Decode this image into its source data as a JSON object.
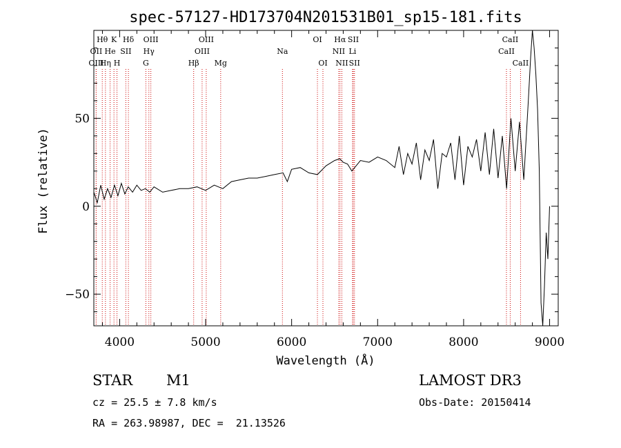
{
  "chart_data": {
    "type": "line",
    "title": "spec-57127-HD173704N201531B01_sp15-181.fits",
    "xlabel": "Wavelength (Å)",
    "ylabel": "Flux (relative)",
    "xlim": [
      3700,
      9100
    ],
    "ylim": [
      -68,
      100
    ],
    "x_ticks": [
      4000,
      5000,
      6000,
      7000,
      8000,
      9000
    ],
    "x_tick_labels": [
      "4000",
      "5000",
      "6000",
      "7000",
      "8000",
      "9000"
    ],
    "y_ticks": [
      50,
      0,
      -50
    ],
    "y_tick_labels": [
      "50",
      "0",
      "−50"
    ],
    "series": [
      {
        "name": "flux",
        "x": [
          3700,
          3740,
          3780,
          3820,
          3860,
          3900,
          3940,
          3980,
          4020,
          4060,
          4100,
          4150,
          4200,
          4250,
          4300,
          4350,
          4400,
          4500,
          4600,
          4700,
          4800,
          4900,
          5000,
          5100,
          5200,
          5300,
          5400,
          5500,
          5600,
          5700,
          5800,
          5900,
          5950,
          6000,
          6100,
          6200,
          6300,
          6400,
          6500,
          6560,
          6600,
          6650,
          6700,
          6800,
          6900,
          7000,
          7100,
          7200,
          7250,
          7300,
          7350,
          7400,
          7450,
          7500,
          7550,
          7600,
          7650,
          7700,
          7750,
          7800,
          7850,
          7900,
          7950,
          8000,
          8050,
          8100,
          8150,
          8200,
          8250,
          8300,
          8350,
          8400,
          8450,
          8500,
          8550,
          8600,
          8650,
          8700,
          8750,
          8780,
          8800,
          8820,
          8840,
          8860,
          8880,
          8900,
          8920,
          8940,
          8960,
          8980,
          9000
        ],
        "values": [
          8,
          2,
          12,
          4,
          10,
          5,
          12,
          6,
          13,
          7,
          11,
          8,
          12,
          9,
          10,
          8,
          11,
          8,
          9,
          10,
          10,
          11,
          9,
          12,
          10,
          14,
          15,
          16,
          16,
          17,
          18,
          19,
          14,
          21,
          22,
          19,
          18,
          23,
          26,
          27,
          25,
          24,
          20,
          26,
          25,
          28,
          26,
          22,
          34,
          18,
          30,
          24,
          36,
          15,
          32,
          26,
          38,
          10,
          30,
          28,
          36,
          15,
          40,
          12,
          34,
          28,
          38,
          20,
          42,
          18,
          44,
          16,
          40,
          10,
          50,
          20,
          48,
          15,
          58,
          85,
          105,
          90,
          75,
          55,
          20,
          -55,
          -68,
          -45,
          -15,
          -30,
          0
        ]
      }
    ],
    "spectral_lines": [
      {
        "label": "Hθ",
        "wavelength": 3798,
        "row": 1
      },
      {
        "label": "OII",
        "wavelength": 3727,
        "row": 2
      },
      {
        "label": "OIII",
        "wavelength": 3727,
        "row": 3
      },
      {
        "label": "He",
        "wavelength": 3889,
        "row": 2
      },
      {
        "label": "Hη",
        "wavelength": 3835,
        "row": 3
      },
      {
        "label": "K",
        "wavelength": 3934,
        "row": 1
      },
      {
        "label": "SII",
        "wavelength": 4072,
        "row": 2
      },
      {
        "label": "H",
        "wavelength": 3969,
        "row": 3
      },
      {
        "label": "Hδ",
        "wavelength": 4102,
        "row": 1
      },
      {
        "label": "OIII",
        "wavelength": 4363,
        "row": 1
      },
      {
        "label": "Hγ",
        "wavelength": 4340,
        "row": 2
      },
      {
        "label": "G",
        "wavelength": 4305,
        "row": 3
      },
      {
        "label": "Hβ",
        "wavelength": 4861,
        "row": 3
      },
      {
        "label": "OIII",
        "wavelength": 5007,
        "row": 1
      },
      {
        "label": "OIII",
        "wavelength": 4959,
        "row": 2
      },
      {
        "label": "Mg",
        "wavelength": 5175,
        "row": 3
      },
      {
        "label": "Na",
        "wavelength": 5893,
        "row": 2
      },
      {
        "label": "OI",
        "wavelength": 6300,
        "row": 1
      },
      {
        "label": "OI",
        "wavelength": 6364,
        "row": 3
      },
      {
        "label": "Hα",
        "wavelength": 6563,
        "row": 1
      },
      {
        "label": "NII",
        "wavelength": 6548,
        "row": 2
      },
      {
        "label": "NII",
        "wavelength": 6584,
        "row": 3
      },
      {
        "label": "SII",
        "wavelength": 6717,
        "row": 1
      },
      {
        "label": "Li",
        "wavelength": 6708,
        "row": 2
      },
      {
        "label": "SII",
        "wavelength": 6731,
        "row": 3
      },
      {
        "label": "CaII",
        "wavelength": 8542,
        "row": 1
      },
      {
        "label": "CaII",
        "wavelength": 8498,
        "row": 2
      },
      {
        "label": "CaII",
        "wavelength": 8662,
        "row": 3
      }
    ]
  },
  "info": {
    "object_class": "STAR",
    "subclass": "M1",
    "survey": "LAMOST DR3",
    "cz": "cz = 25.5 ± 7.8 km/s",
    "obs_date": "Obs-Date: 20150414",
    "coords": "RA = 263.98987, DEC =  21.13526"
  }
}
